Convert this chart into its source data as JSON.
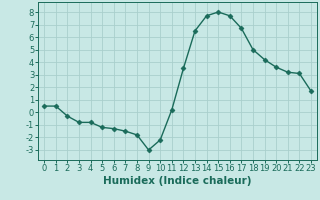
{
  "x": [
    0,
    1,
    2,
    3,
    4,
    5,
    6,
    7,
    8,
    9,
    10,
    11,
    12,
    13,
    14,
    15,
    16,
    17,
    18,
    19,
    20,
    21,
    22,
    23
  ],
  "y": [
    0.5,
    0.5,
    -0.3,
    -0.8,
    -0.8,
    -1.2,
    -1.3,
    -1.5,
    -1.8,
    -3.0,
    -2.2,
    0.2,
    3.5,
    6.5,
    7.7,
    8.0,
    7.7,
    6.7,
    5.0,
    4.2,
    3.6,
    3.2,
    3.1,
    1.7
  ],
  "line_color": "#1a6b5a",
  "marker": "D",
  "marker_size": 2.5,
  "bg_color": "#c8e8e5",
  "plot_bg_color": "#c8e8e5",
  "grid_color": "#aacfcc",
  "xlabel": "Humidex (Indice chaleur)",
  "xlim": [
    -0.5,
    23.5
  ],
  "ylim": [
    -3.8,
    8.8
  ],
  "yticks": [
    -3,
    -2,
    -1,
    0,
    1,
    2,
    3,
    4,
    5,
    6,
    7,
    8
  ],
  "xticks": [
    0,
    1,
    2,
    3,
    4,
    5,
    6,
    7,
    8,
    9,
    10,
    11,
    12,
    13,
    14,
    15,
    16,
    17,
    18,
    19,
    20,
    21,
    22,
    23
  ],
  "tick_label_size": 6,
  "xlabel_size": 7.5,
  "line_width": 1.0
}
